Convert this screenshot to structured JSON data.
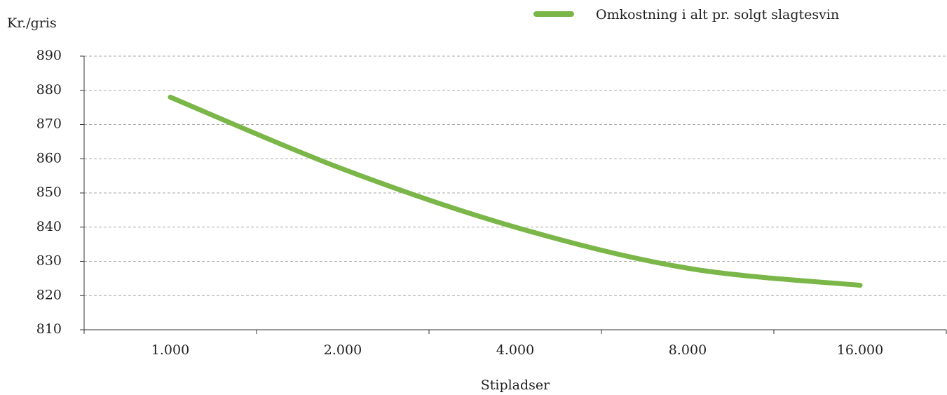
{
  "chart_data": {
    "type": "line",
    "y_axis_label": "Kr./gris",
    "x_axis_label": "Stipladser",
    "categories": [
      "1.000",
      "2.000",
      "4.000",
      "8.000",
      "16.000"
    ],
    "series": [
      {
        "name": "Omkostning i alt pr. solgt slagtesvin",
        "color": "#7ab648",
        "values": [
          878,
          857,
          840,
          828,
          823
        ]
      }
    ],
    "ylim": [
      810,
      890
    ],
    "yticks": [
      810,
      820,
      830,
      840,
      850,
      860,
      870,
      880,
      890
    ],
    "grid": true,
    "legend": "top-right"
  }
}
